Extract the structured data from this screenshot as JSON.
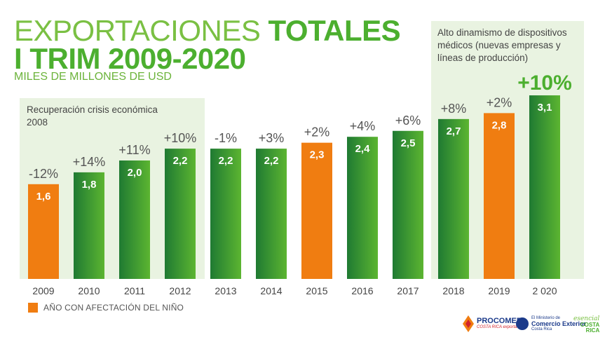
{
  "header": {
    "title_light": "EXPORTACIONES ",
    "title_bold": "TOTALES",
    "title_line2": "I TRIM 2009-2020",
    "subtitle": "MILES DE MILLONES DE USD"
  },
  "notes": {
    "left": "Recuperación crisis económica 2008",
    "right": "Alto dinamismo de dispositivos médicos (nuevas empresas y líneas de producción)"
  },
  "legend": {
    "label": "AÑO CON AFECTACIÓN DEL NIÑO",
    "color": "#f07d11"
  },
  "logos": {
    "procomer": "PROCOMER",
    "procomer_sub": "COSTA RICA exporta",
    "comex_small": "El Ministerio de",
    "comex_big": "Comercio Exterior",
    "comex_country": "Costa Rica",
    "cr_script": "esencial",
    "cr_line1": "COSTA",
    "cr_line2": "RICA"
  },
  "colors": {
    "green_dark": "#1f7a32",
    "green_light": "#5cb531",
    "orange": "#f07d11",
    "panel": "#e9f3e1"
  },
  "chart_data": {
    "type": "bar",
    "categories": [
      "2009",
      "2010",
      "2011",
      "2012",
      "2013",
      "2014",
      "2015",
      "2016",
      "2017",
      "2018",
      "2019",
      "2 020"
    ],
    "values": [
      1.6,
      1.8,
      2.0,
      2.2,
      2.2,
      2.2,
      2.3,
      2.4,
      2.5,
      2.7,
      2.8,
      3.1
    ],
    "value_labels": [
      "1,6",
      "1,8",
      "2,0",
      "2,2",
      "2,2",
      "2,2",
      "2,3",
      "2,4",
      "2,5",
      "2,7",
      "2,8",
      "3,1"
    ],
    "change_labels": [
      "-12%",
      "+14%",
      "+11%",
      "+10%",
      "-1%",
      "+3%",
      "+2%",
      "+4%",
      "+6%",
      "+8%",
      "+2%",
      "+10%"
    ],
    "nino_years": [
      true,
      false,
      false,
      false,
      false,
      false,
      true,
      false,
      false,
      false,
      true,
      false
    ],
    "ylim": [
      0,
      3.3
    ],
    "title": "EXPORTACIONES TOTALES I TRIM 2009-2020",
    "xlabel": "",
    "ylabel": "MILES DE MILLONES DE USD"
  }
}
